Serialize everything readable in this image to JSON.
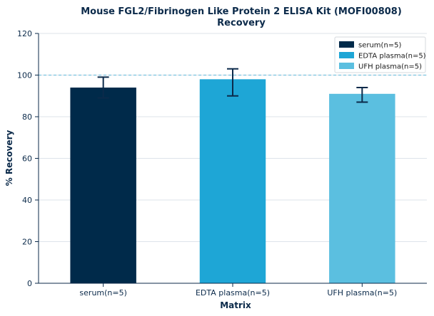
{
  "chart_data": {
    "type": "bar",
    "title_line1": "Mouse FGL2/Fibrinogen Like Protein 2 ELISA Kit (MOFI00808)",
    "title_line2": "Recovery",
    "xlabel": "Matrix",
    "ylabel": "% Recovery",
    "ylim": [
      0,
      120
    ],
    "yticks": [
      0,
      20,
      40,
      60,
      80,
      100,
      120
    ],
    "reference_line": 100,
    "grid": "horizontal",
    "legend_position": "top-right",
    "categories": [
      "serum(n=5)",
      "EDTA plasma(n=5)",
      "UFH plasma(n=5)"
    ],
    "values": [
      94,
      98,
      91
    ],
    "error_low": [
      89,
      90,
      87
    ],
    "error_high": [
      99,
      103,
      94
    ],
    "colors": [
      "#002a4a",
      "#1ea6d6",
      "#5bbfe0"
    ],
    "legend": [
      "serum(n=5)",
      "EDTA plasma(n=5)",
      "UFH plasma(n=5)"
    ]
  }
}
